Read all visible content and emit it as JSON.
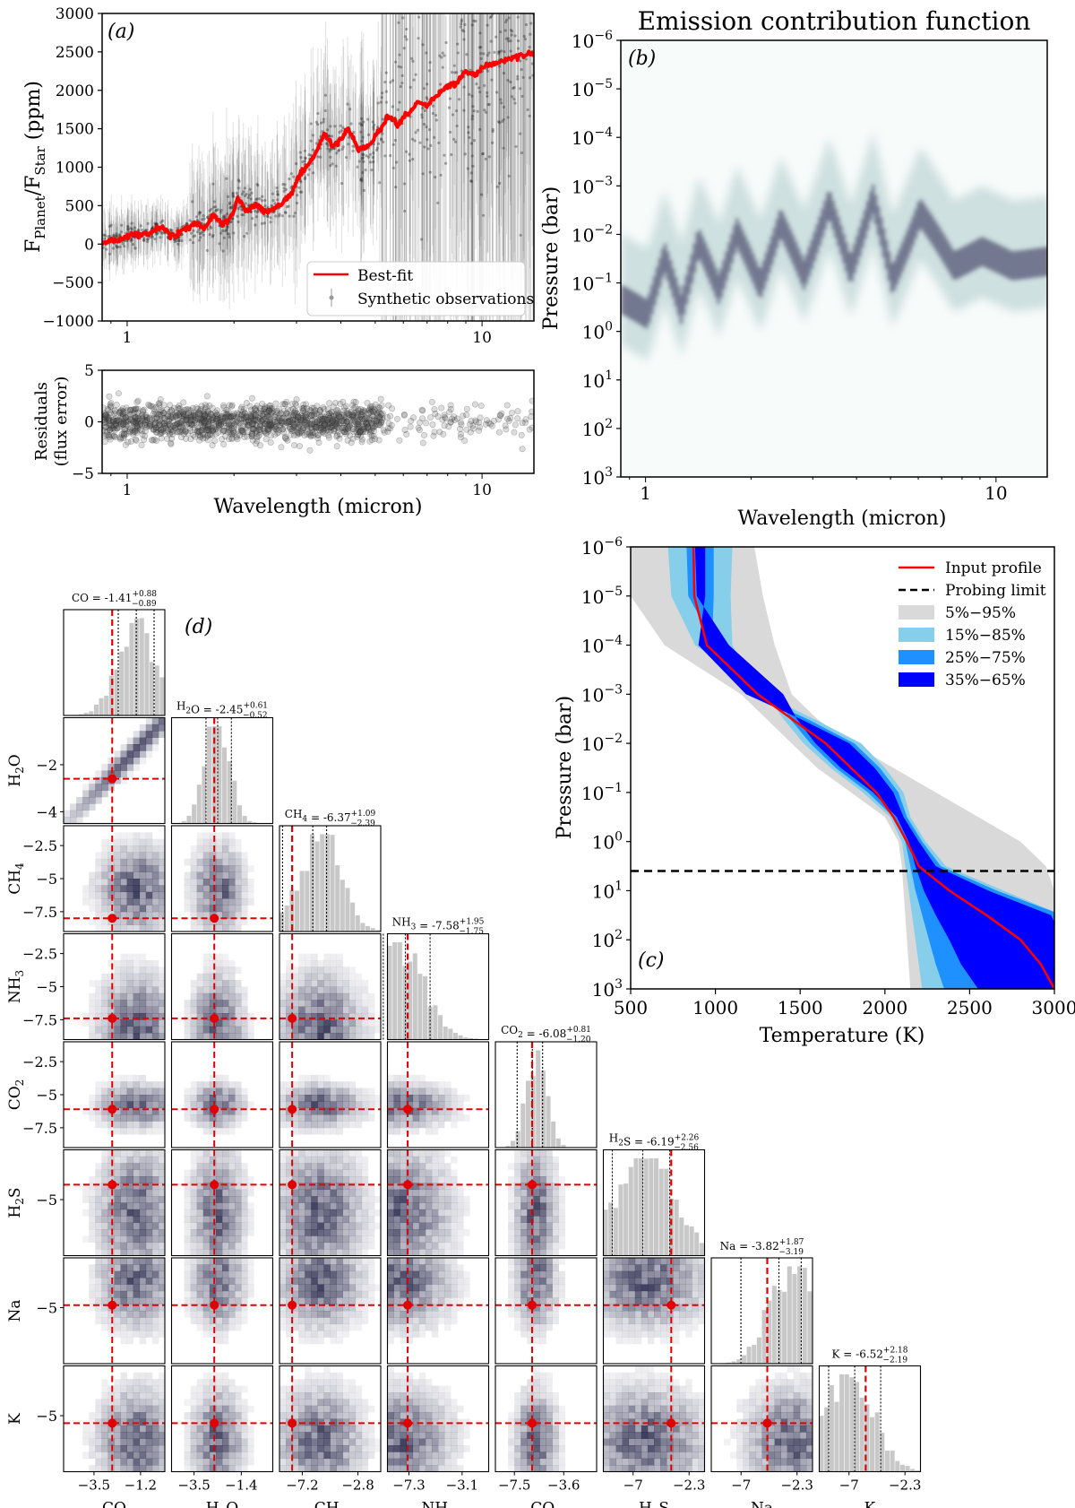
{
  "chart_data": [
    {
      "panel": "a",
      "panel_label": "(a)",
      "type": "line",
      "xlabel": "",
      "ylabel": "F_Planet/F_Star (ppm)",
      "ylabel_main": "F",
      "ylabel_sub1": "Planet",
      "ylabel_mid": "/F",
      "ylabel_sub2": "Star",
      "ylabel_tail": " (ppm)",
      "xscale": "log",
      "xlim": [
        0.85,
        14
      ],
      "ylim": [
        -1000,
        3000
      ],
      "xticks": [
        1,
        10
      ],
      "yticks": [
        -1000,
        -500,
        0,
        500,
        1000,
        1500,
        2000,
        2500,
        3000
      ],
      "legend": [
        "Best-fit",
        "Synthetic observations"
      ],
      "legend_position": "lower-right",
      "series": [
        {
          "name": "Best-fit",
          "color": "#ff0000",
          "x": [
            0.85,
            0.95,
            1.05,
            1.15,
            1.25,
            1.35,
            1.45,
            1.55,
            1.65,
            1.75,
            1.85,
            1.95,
            2.05,
            2.15,
            2.3,
            2.45,
            2.6,
            2.75,
            2.9,
            3.05,
            3.2,
            3.4,
            3.6,
            3.8,
            4.0,
            4.2,
            4.5,
            4.8,
            5.1,
            5.4,
            5.8,
            6.2,
            6.6,
            7.0,
            7.5,
            8.0,
            8.5,
            9.0,
            9.5,
            10.0,
            11.0,
            12.0,
            13.0,
            14.0
          ],
          "values": [
            20,
            60,
            130,
            130,
            220,
            90,
            190,
            270,
            200,
            390,
            260,
            320,
            600,
            450,
            500,
            430,
            470,
            540,
            660,
            880,
            1000,
            1180,
            1450,
            1250,
            1380,
            1500,
            1220,
            1280,
            1450,
            1650,
            1550,
            1700,
            1850,
            1800,
            1950,
            2050,
            2100,
            2250,
            2200,
            2300,
            2350,
            2420,
            2450,
            2500
          ]
        },
        {
          "name": "Synthetic observations",
          "color": "#555555"
        }
      ]
    },
    {
      "panel": "a-residuals",
      "type": "scatter",
      "xlabel": "Wavelength (micron)",
      "ylabel": "Residuals (flux error)",
      "ylabel_line1": "Residuals",
      "ylabel_line2": "(flux error)",
      "xscale": "log",
      "xlim": [
        0.85,
        14
      ],
      "ylim": [
        -5,
        5
      ],
      "xticks": [
        1,
        10
      ],
      "yticks": [
        -5,
        0,
        5
      ]
    },
    {
      "panel": "b",
      "panel_label": "(b)",
      "type": "heatmap",
      "title": "Emission contribution function",
      "xlabel": "Wavelength (micron)",
      "ylabel": "Pressure (bar)",
      "xscale": "log",
      "yscale": "log",
      "xlim": [
        0.85,
        14
      ],
      "ylim_exponents": [
        -6,
        3
      ],
      "xticks": [
        1,
        10
      ],
      "yticks_exponents": [
        -6,
        -5,
        -4,
        -3,
        -2,
        -1,
        0,
        1,
        2,
        3
      ],
      "peak_pressure_log10": [
        {
          "x": 0.85,
          "p": -0.6
        },
        {
          "x": 1.0,
          "p": -0.3
        },
        {
          "x": 1.12,
          "p": -1.5
        },
        {
          "x": 1.25,
          "p": -0.4
        },
        {
          "x": 1.4,
          "p": -1.8
        },
        {
          "x": 1.6,
          "p": -0.8
        },
        {
          "x": 1.8,
          "p": -2.0
        },
        {
          "x": 2.1,
          "p": -0.9
        },
        {
          "x": 2.4,
          "p": -2.2
        },
        {
          "x": 2.8,
          "p": -1.1
        },
        {
          "x": 3.3,
          "p": -2.6
        },
        {
          "x": 3.8,
          "p": -1.2
        },
        {
          "x": 4.4,
          "p": -2.7
        },
        {
          "x": 5.0,
          "p": -1.0
        },
        {
          "x": 6.0,
          "p": -2.4
        },
        {
          "x": 7.5,
          "p": -1.3
        },
        {
          "x": 9.0,
          "p": -1.6
        },
        {
          "x": 11.0,
          "p": -1.3
        },
        {
          "x": 14.0,
          "p": -1.4
        }
      ]
    },
    {
      "panel": "c",
      "panel_label": "(c)",
      "type": "area",
      "xlabel": "Temperature (K)",
      "ylabel": "Pressure (bar)",
      "yscale": "log",
      "xlim": [
        500,
        3000
      ],
      "ylim_exponents": [
        -6,
        3
      ],
      "xticks": [
        500,
        1000,
        1500,
        2000,
        2500,
        3000
      ],
      "yticks_exponents": [
        -6,
        -5,
        -4,
        -3,
        -2,
        -1,
        0,
        1,
        2,
        3
      ],
      "legend": [
        "Input profile",
        "Probing limit",
        "5%−95%",
        "15%−85%",
        "25%−75%",
        "35%−65%"
      ],
      "legend_position": "top-right",
      "probing_limit_log10_pressure": 0.6,
      "logP": [
        -6,
        -5,
        -4,
        -3,
        -2.5,
        -2,
        -1.5,
        -1,
        -0.5,
        0,
        0.5,
        1,
        1.5,
        2,
        2.5,
        3
      ],
      "input_profile_T": [
        870,
        875,
        950,
        1250,
        1450,
        1650,
        1800,
        1950,
        2050,
        2130,
        2200,
        2380,
        2600,
        2800,
        2920,
        3000
      ],
      "band_colors": [
        "#d9d9d9",
        "#87ceeb",
        "#1e90ff",
        "#0000ff"
      ],
      "bands": [
        {
          "name": "5%−95%",
          "lo": [
            500,
            500,
            700,
            1150,
            1300,
            1450,
            1600,
            1800,
            2000,
            2080,
            2100,
            2110,
            2120,
            2130,
            2140,
            2150
          ],
          "hi": [
            1230,
            1280,
            1350,
            1450,
            1600,
            1800,
            2050,
            2300,
            2550,
            2800,
            2950,
            3000,
            3000,
            3000,
            3000,
            3000
          ]
        },
        {
          "name": "15%−85%",
          "lo": [
            720,
            740,
            880,
            1300,
            1400,
            1520,
            1680,
            1870,
            2030,
            2100,
            2120,
            2140,
            2160,
            2180,
            2200,
            2220
          ]
        },
        {
          "name": "25%−75%",
          "lo": [
            830,
            840,
            1000,
            1360,
            1440,
            1560,
            1710,
            1900,
            2050,
            2120,
            2150,
            2180,
            2220,
            2260,
            2300,
            2350
          ]
        },
        {
          "name": "35%−65%",
          "lo": [
            880,
            890,
            1080,
            1400,
            1480,
            1590,
            1740,
            1930,
            2070,
            2140,
            2180,
            2230,
            2300,
            2380,
            2450,
            2550
          ]
        }
      ]
    },
    {
      "panel": "d",
      "panel_label": "(d)",
      "type": "corner",
      "parameters": [
        {
          "label": "CO",
          "base": "CO",
          "sub": "",
          "title_value": "-1.41",
          "err_up": "+0.88",
          "err_down": "−0.89",
          "range": [
            -5.0,
            0.0
          ],
          "truth": -2.6,
          "peak": -1.4,
          "spread": 0.9,
          "ticks": [
            -3.5,
            -1.2
          ],
          "yticks": [],
          "q": [
            -2.3,
            -1.41,
            -0.53
          ]
        },
        {
          "label": "H2O",
          "base": "H",
          "sub": "2",
          "tail": "O",
          "title_value": "-2.45",
          "err_up": "+0.61",
          "err_down": "−0.52",
          "range": [
            -4.5,
            0.0
          ],
          "truth": -2.6,
          "peak": -2.45,
          "spread": 0.55,
          "ticks": [
            -3.5,
            -1.4
          ],
          "yticks": [
            -2,
            -4
          ],
          "q": [
            -2.97,
            -2.45,
            -1.84
          ]
        },
        {
          "label": "CH4",
          "base": "CH",
          "sub": "4",
          "title_value": "-6.37",
          "err_up": "+1.09",
          "err_down": "−2.39",
          "range": [
            -9.0,
            -1.0
          ],
          "truth": -8.0,
          "peak": -5.8,
          "spread": 1.6,
          "ticks": [
            -7.2,
            -2.8
          ],
          "yticks": [
            -2.5,
            -5.0,
            -7.5
          ],
          "q": [
            -8.76,
            -6.37,
            -5.28
          ]
        },
        {
          "label": "NH3",
          "base": "NH",
          "sub": "3",
          "title_value": "-7.58",
          "err_up": "+1.95",
          "err_down": "−1.75",
          "range": [
            -9.0,
            -1.0
          ],
          "truth": -7.4,
          "peak": -8.2,
          "spread": 2.0,
          "ticks": [
            -7.3,
            -3.1
          ],
          "yticks": [
            -2.5,
            -5.0,
            -7.5
          ],
          "q": [
            -9.33,
            -7.58,
            -5.63
          ]
        },
        {
          "label": "CO2",
          "base": "CO",
          "sub": "2",
          "title_value": "-6.08",
          "err_up": "+0.81",
          "err_down": "−1.20",
          "range": [
            -9.0,
            -1.0
          ],
          "truth": -6.1,
          "peak": -5.8,
          "spread": 0.8,
          "ticks": [
            -7.5,
            -3.6
          ],
          "yticks": [
            -2.5,
            -5.0,
            -7.5
          ],
          "q": [
            -7.28,
            -6.08,
            -5.27
          ]
        },
        {
          "label": "H2S",
          "base": "H",
          "sub": "2",
          "tail": "S",
          "title_value": "-6.19",
          "err_up": "+2.26",
          "err_down": "−2.56",
          "range": [
            -9.5,
            -1.0
          ],
          "truth": -3.8,
          "peak": -6.0,
          "spread": 2.4,
          "ticks": [
            -7.0,
            -2.3
          ],
          "yticks": [
            -5
          ],
          "q": [
            -8.75,
            -6.19,
            -3.93
          ]
        },
        {
          "label": "Na",
          "base": "Na",
          "sub": "",
          "title_value": "-3.82",
          "err_up": "+1.87",
          "err_down": "−3.19",
          "range": [
            -9.5,
            -1.0
          ],
          "truth": -4.8,
          "peak": -2.8,
          "spread": 1.8,
          "ticks": [
            -7.0,
            -2.3
          ],
          "yticks": [
            -5
          ],
          "q": [
            -7.01,
            -3.82,
            -1.95
          ]
        },
        {
          "label": "K",
          "base": "K",
          "sub": "",
          "title_value": "-6.52",
          "err_up": "+2.18",
          "err_down": "−2.19",
          "range": [
            -9.5,
            -1.0
          ],
          "truth": -5.6,
          "peak": -7.0,
          "spread": 2.0,
          "ticks": [
            -7.0,
            -2.3
          ],
          "yticks": [
            -5
          ],
          "q": [
            -8.71,
            -6.52,
            -4.34
          ]
        }
      ]
    }
  ]
}
